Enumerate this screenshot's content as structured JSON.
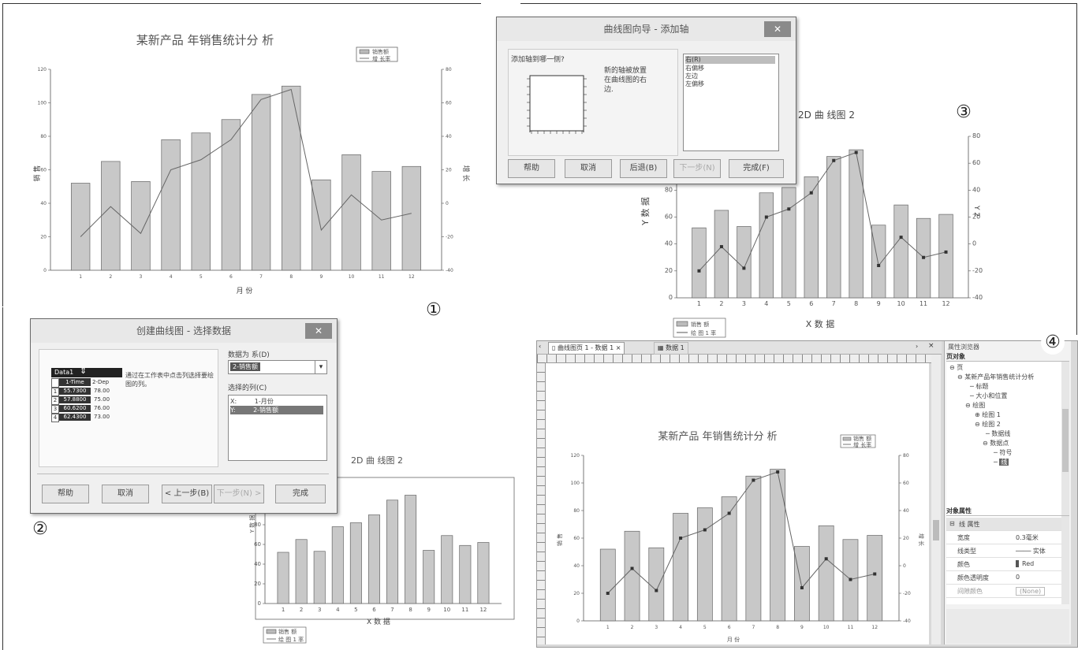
{
  "panel1": {
    "marker": "①",
    "chart_title": "某新产品 年销售统计分 析",
    "xlabel": "月 份",
    "ylabel": "销 售",
    "y2label": "增 长",
    "legend": [
      "销售额",
      "增 长率"
    ]
  },
  "panel2": {
    "marker": "②",
    "dialog_title": "创建曲线图 - 选择数据",
    "grid_header": "Data1",
    "grid_cols": [
      "1-Time",
      "2-Dep"
    ],
    "grid_rows": [
      {
        "i": "1",
        "a": "55.7300",
        "b": "78.00"
      },
      {
        "i": "2",
        "a": "57.8800",
        "b": "75.00"
      },
      {
        "i": "3",
        "a": "60.6200",
        "b": "76.00"
      },
      {
        "i": "4",
        "a": "62.4300",
        "b": "73.00"
      }
    ],
    "hint": "通过在工作表中点击列选择要绘图的列。",
    "data_as_label": "数据为 系(D)",
    "data_as_value": "2-销售额",
    "selected_cols_label": "选择的列(C)",
    "selected_cols": [
      {
        "axis": "X:",
        "name": "1-月份"
      },
      {
        "axis": "Y:",
        "name": "2-销售额"
      }
    ],
    "buttons": {
      "help": "帮助",
      "cancel": "取消",
      "back": "< 上一步(B)",
      "next": "下一步(N) >",
      "finish": "完成"
    },
    "chart_title": "2D 曲 线图 2",
    "xlabel": "X 数 据",
    "ylabel": "Y 数 据",
    "legend": [
      "销售 额",
      "绘 图 1 率"
    ]
  },
  "panel3": {
    "marker": "③",
    "dialog_title": "曲线图向导 - 添加轴",
    "question": "添加轴到哪一侧?",
    "desc": "新的轴被放置在曲线图的右边.",
    "options": [
      "右(R)",
      "右偏移",
      "左边",
      "左偏移"
    ],
    "buttons": {
      "help": "帮助",
      "cancel": "取消",
      "back": "后退(B)",
      "next": "下一步(N)",
      "finish": "完成(F)"
    },
    "chart_title": "2D 曲 线图 2",
    "xlabel": "X 数 据",
    "ylabel": "Y 数 据",
    "y2label": "Y 2",
    "legend": [
      "销售 额",
      "绘 图 1 率"
    ]
  },
  "panel4": {
    "marker": "④",
    "tabs": [
      "曲线图页 1 - 数据 1",
      "数据 1"
    ],
    "chart_title": "某新产品 年销售统计分 析",
    "xlabel": "月 份",
    "ylabel": "销 售",
    "y2label": "增 长",
    "legend": [
      "销售 额",
      "增 长率"
    ],
    "browser_title": "属性浏览器",
    "page_objects": "页对象",
    "tree": [
      "页",
      "某新产品年销售统计分析",
      "标题",
      "大小和位置",
      "绘图",
      "绘图 1",
      "绘图 2",
      "数据线",
      "数据点",
      "符号",
      "线"
    ],
    "obj_props": "对象属性",
    "prop_section": "线 属性",
    "props": [
      {
        "k": "宽度",
        "v": "0.3毫米"
      },
      {
        "k": "线类型",
        "v": "实体"
      },
      {
        "k": "颜色",
        "v": "Red"
      },
      {
        "k": "颜色透明度",
        "v": "0"
      },
      {
        "k": "间隙颜色",
        "v": "(None)"
      }
    ]
  },
  "chart_data": [
    {
      "type": "bar",
      "title": "某新产品 年销售统计分 析",
      "xlabel": "月 份",
      "ylabel": "销 售",
      "y2label": "增 长",
      "categories": [
        "1",
        "2",
        "3",
        "4",
        "5",
        "6",
        "7",
        "8",
        "9",
        "10",
        "11",
        "12"
      ],
      "series": [
        {
          "name": "销售额",
          "type": "bar",
          "axis": "left",
          "values": [
            52,
            65,
            53,
            78,
            82,
            90,
            105,
            110,
            54,
            69,
            59,
            62
          ]
        },
        {
          "name": "增 长率",
          "type": "line",
          "axis": "right",
          "values": [
            -20,
            -2,
            -18,
            20,
            26,
            38,
            62,
            68,
            -16,
            5,
            -10,
            -6
          ]
        }
      ],
      "ylim": [
        0,
        120
      ],
      "y2lim": [
        -40,
        80
      ],
      "y_ticks": [
        "0",
        "20",
        "40",
        "60",
        "80",
        "100",
        "120"
      ],
      "y2_ticks": [
        "-40",
        "-20",
        "0",
        "20",
        "40",
        "60",
        "80"
      ]
    }
  ]
}
